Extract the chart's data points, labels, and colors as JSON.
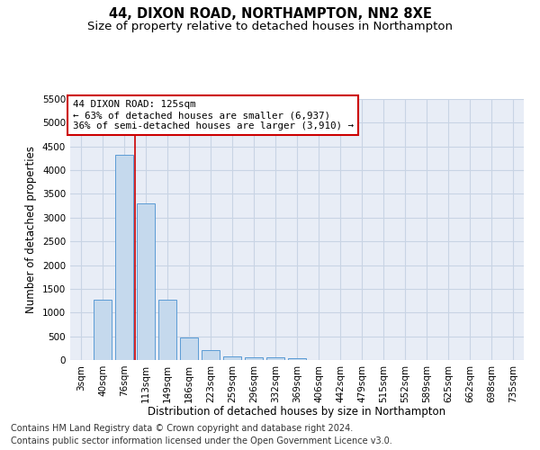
{
  "title": "44, DIXON ROAD, NORTHAMPTON, NN2 8XE",
  "subtitle": "Size of property relative to detached houses in Northampton",
  "xlabel": "Distribution of detached houses by size in Northampton",
  "ylabel": "Number of detached properties",
  "footnote1": "Contains HM Land Registry data © Crown copyright and database right 2024.",
  "footnote2": "Contains public sector information licensed under the Open Government Licence v3.0.",
  "annotation_line1": "44 DIXON ROAD: 125sqm",
  "annotation_line2": "← 63% of detached houses are smaller (6,937)",
  "annotation_line3": "36% of semi-detached houses are larger (3,910) →",
  "bar_labels": [
    "3sqm",
    "40sqm",
    "76sqm",
    "113sqm",
    "149sqm",
    "186sqm",
    "223sqm",
    "259sqm",
    "296sqm",
    "332sqm",
    "369sqm",
    "406sqm",
    "442sqm",
    "479sqm",
    "515sqm",
    "552sqm",
    "589sqm",
    "625sqm",
    "662sqm",
    "698sqm",
    "735sqm"
  ],
  "bar_values": [
    0,
    1270,
    4330,
    3300,
    1270,
    480,
    210,
    75,
    55,
    50,
    30,
    0,
    0,
    0,
    0,
    0,
    0,
    0,
    0,
    0,
    0
  ],
  "bar_color": "#c5d9ed",
  "bar_edge_color": "#5b9bd5",
  "vline_x": 2.5,
  "vline_color": "#cc0000",
  "ylim_max": 5500,
  "yticks": [
    0,
    500,
    1000,
    1500,
    2000,
    2500,
    3000,
    3500,
    4000,
    4500,
    5000,
    5500
  ],
  "grid_color": "#c8d4e4",
  "bg_color": "#e8edf6",
  "ann_fontsize": 7.8,
  "title_fontsize": 10.5,
  "subtitle_fontsize": 9.5,
  "axis_label_fontsize": 8.5,
  "tick_fontsize": 7.5,
  "footnote_fontsize": 7.0
}
